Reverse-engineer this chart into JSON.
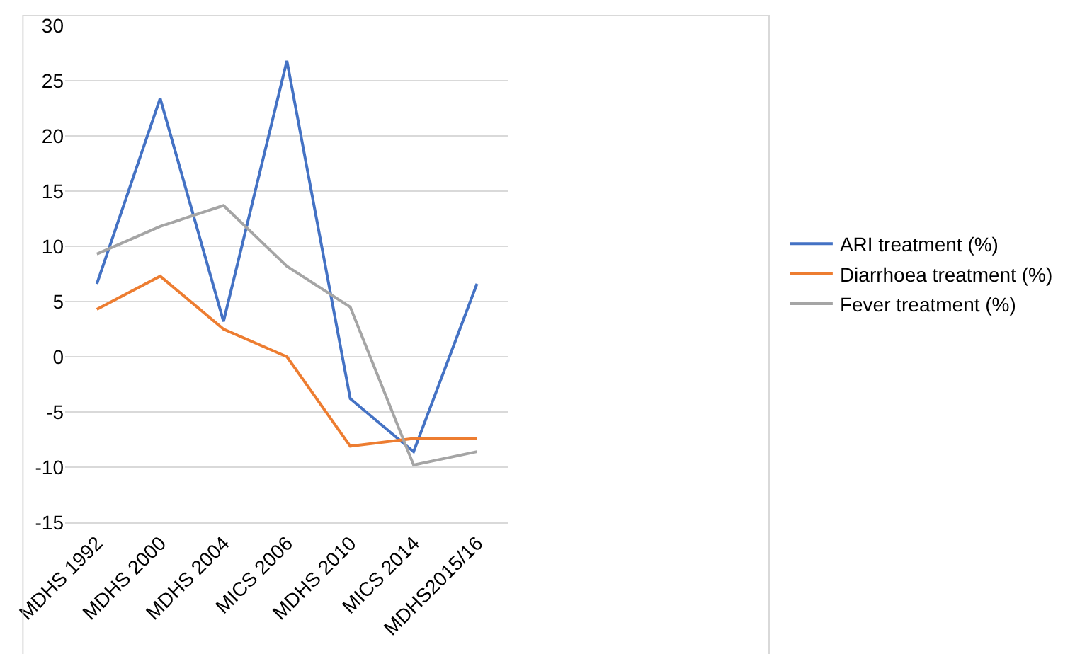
{
  "chart_data": {
    "type": "line",
    "categories": [
      "MDHS 1992",
      "MDHS 2000",
      "MDHS 2004",
      "MICS 2006",
      "MDHS 2010",
      "MICS 2014",
      "MDHS2015/16"
    ],
    "series": [
      {
        "name": "ARI treatment (%)",
        "color": "#4472c4",
        "values": [
          6.6,
          23.4,
          3.2,
          26.8,
          -3.8,
          -8.6,
          6.6
        ]
      },
      {
        "name": "Diarrhoea treatment (%)",
        "color": "#ed7d31",
        "values": [
          4.3,
          7.3,
          2.5,
          0,
          -8.1,
          -7.4,
          -7.4
        ]
      },
      {
        "name": "Fever treatment (%)",
        "color": "#a5a5a5",
        "values": [
          9.3,
          11.8,
          13.7,
          8.2,
          4.5,
          -9.8,
          -8.6
        ]
      }
    ],
    "ylim": [
      -15,
      30
    ],
    "yticks": [
      -15,
      -10,
      -5,
      0,
      5,
      10,
      15,
      20,
      25,
      30
    ],
    "grid": "y",
    "legend": "right",
    "marker": "none",
    "line_style": "solid"
  }
}
